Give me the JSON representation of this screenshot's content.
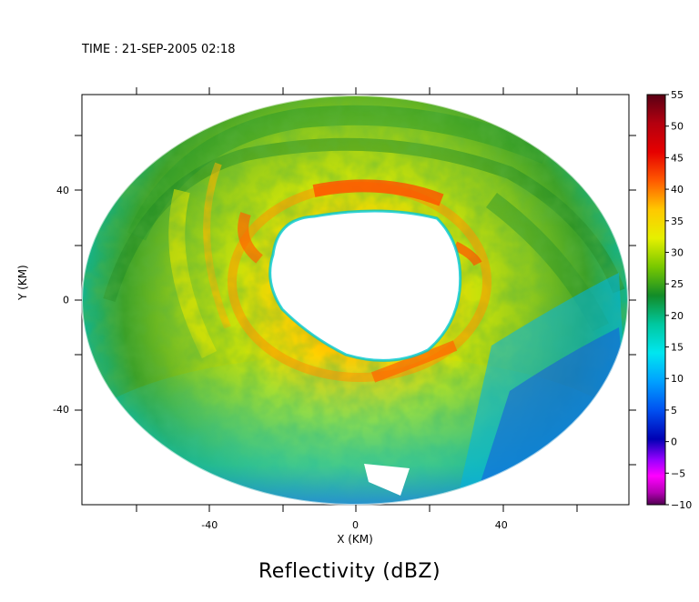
{
  "header": {
    "time_text": "TIME : 21-SEP-2005 02:18"
  },
  "chart_data": {
    "type": "heatmap",
    "title": "Reflectivity (dBZ)",
    "xlabel": "X (KM)",
    "ylabel": "Y (KM)",
    "xlim": [
      -75,
      75
    ],
    "ylim": [
      -75,
      75
    ],
    "x_ticks": [
      -40,
      0,
      40
    ],
    "y_ticks": [
      -40,
      0,
      40
    ],
    "colorbar": {
      "min": -10,
      "max": 55,
      "ticks": [
        55,
        50,
        45,
        40,
        35,
        30,
        25,
        20,
        15,
        10,
        5,
        0,
        -5,
        -10
      ],
      "tick_labels": [
        "55",
        "50",
        "45",
        "40",
        "35",
        "30",
        "25",
        "20",
        "15",
        "10",
        "5",
        "0",
        "−5",
        "−10"
      ],
      "colors": [
        "#5a0014",
        "#a00010",
        "#e80000",
        "#ff5a00",
        "#ffa000",
        "#ffe000",
        "#c8e600",
        "#78c800",
        "#208c20",
        "#00c8a0",
        "#00e6e6",
        "#00a0ff",
        "#0064ff",
        "#0000c8",
        "#8000c8",
        "#ff00ff",
        "#c800c8",
        "#640064"
      ]
    }
  }
}
